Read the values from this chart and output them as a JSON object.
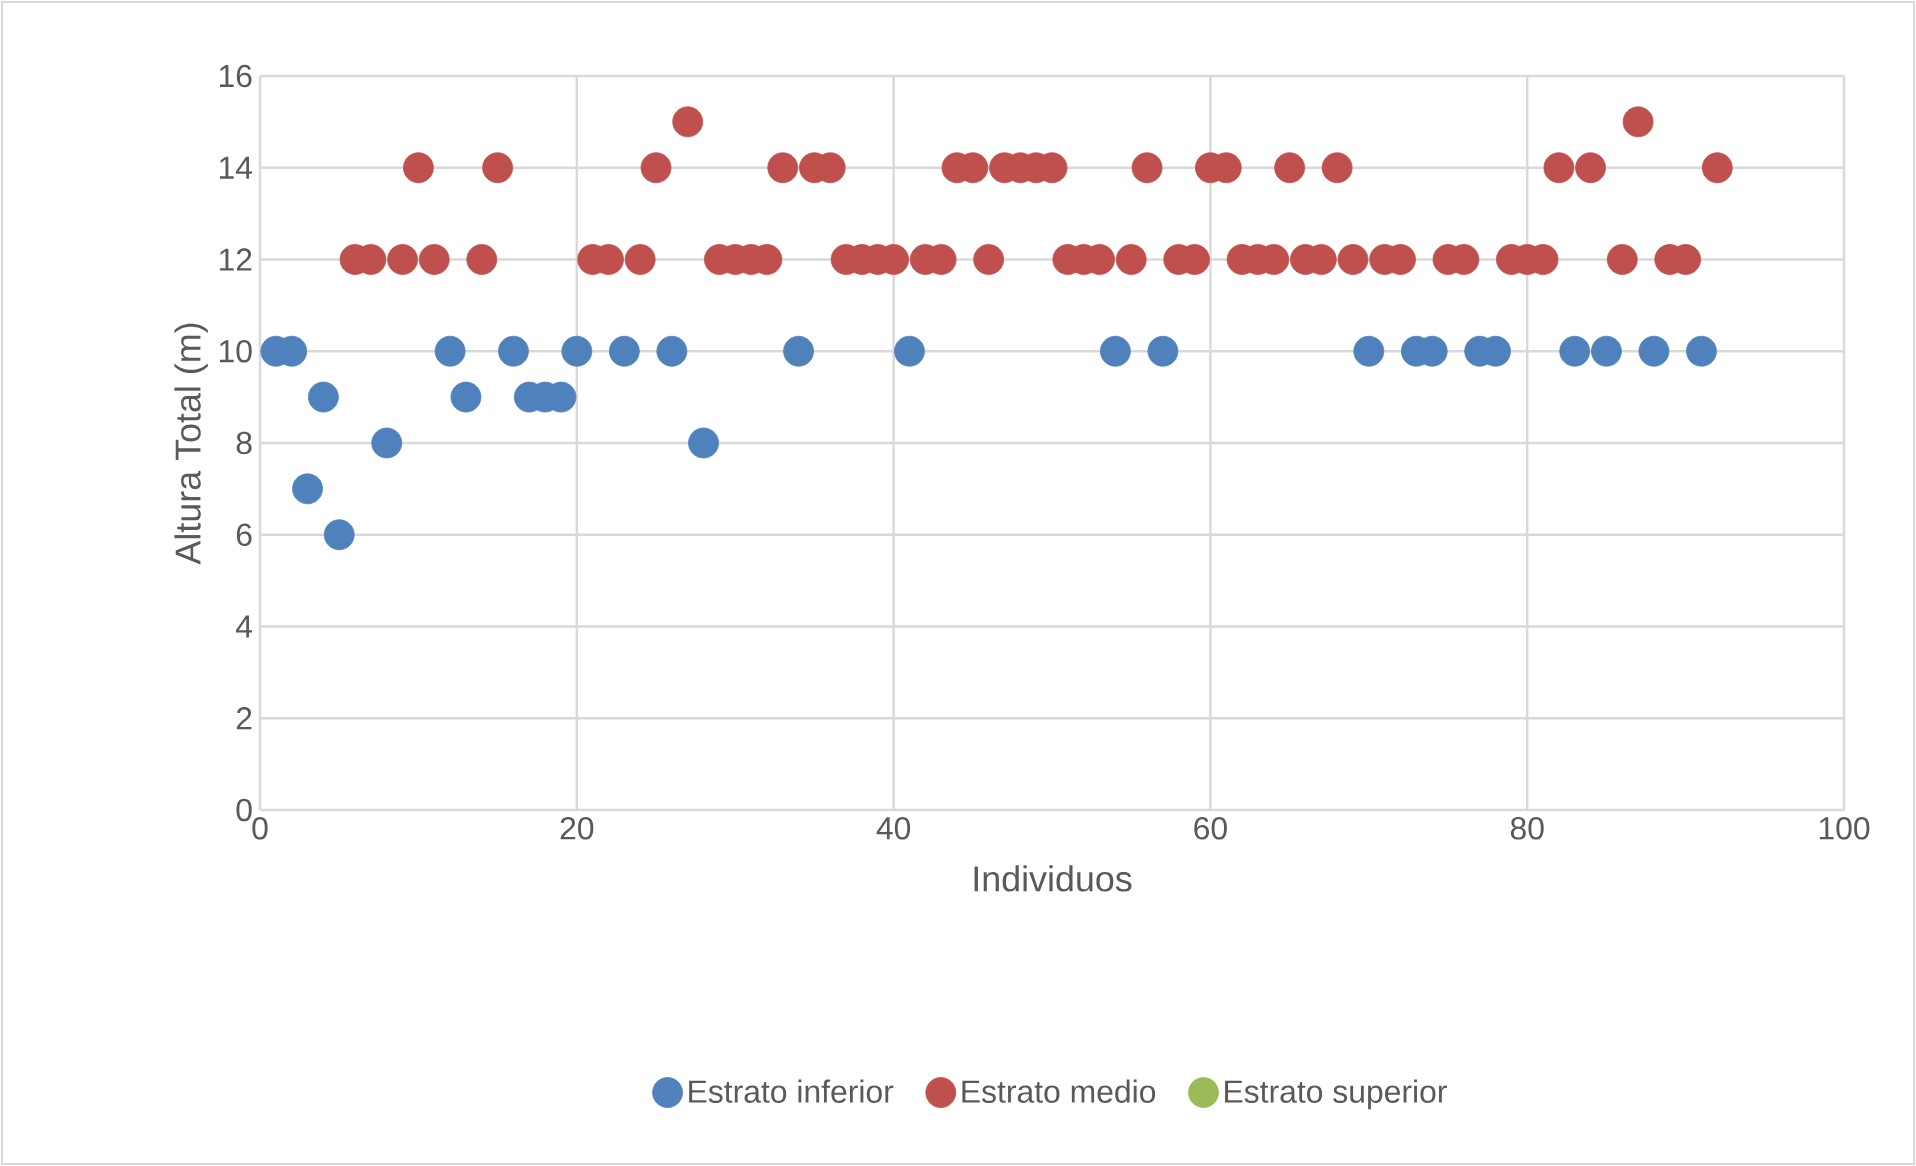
{
  "chart_data": {
    "type": "scatter",
    "xlabel": "Individuos",
    "ylabel": "Altura Total (m)",
    "xlim": [
      0,
      100
    ],
    "xticks": [
      0,
      20,
      40,
      60,
      80,
      100
    ],
    "ylim": [
      0,
      16
    ],
    "yticks": [
      0,
      2,
      4,
      6,
      8,
      10,
      12,
      14,
      16
    ],
    "grid": true,
    "legend": "bottom",
    "marker": "circle",
    "series": [
      {
        "name": "Estrato inferior",
        "color": "#4f81bd",
        "x": [
          1,
          2,
          3,
          4,
          5,
          8,
          12,
          13,
          16,
          17,
          18,
          19,
          20,
          23,
          26,
          28,
          34,
          41,
          54,
          57,
          70,
          73,
          74,
          77,
          78,
          83,
          85,
          88,
          91
        ],
        "values": [
          10,
          10,
          7,
          9,
          6,
          8,
          10,
          9,
          10,
          9,
          9,
          9,
          10,
          10,
          10,
          8,
          10,
          10,
          10,
          10,
          10,
          10,
          10,
          10,
          10,
          10,
          10,
          10,
          10
        ]
      },
      {
        "name": "Estrato medio",
        "color": "#c0504d",
        "x": [
          6,
          7,
          9,
          10,
          11,
          14,
          15,
          21,
          22,
          24,
          25,
          27,
          29,
          30,
          31,
          32,
          33,
          35,
          36,
          37,
          38,
          39,
          40,
          42,
          43,
          44,
          45,
          46,
          47,
          48,
          49,
          50,
          51,
          52,
          53,
          55,
          56,
          58,
          59,
          60,
          61,
          62,
          63,
          64,
          65,
          66,
          67,
          68,
          69,
          71,
          72,
          75,
          76,
          79,
          80,
          81,
          82,
          84,
          86,
          87,
          89,
          90,
          92
        ],
        "values": [
          12,
          12,
          12,
          14,
          12,
          12,
          14,
          12,
          12,
          12,
          14,
          15,
          12,
          12,
          12,
          12,
          14,
          14,
          14,
          12,
          12,
          12,
          12,
          12,
          12,
          14,
          14,
          12,
          14,
          14,
          14,
          14,
          12,
          12,
          12,
          12,
          14,
          12,
          12,
          14,
          14,
          12,
          12,
          12,
          14,
          12,
          12,
          14,
          12,
          12,
          12,
          12,
          12,
          12,
          12,
          12,
          14,
          14,
          12,
          15,
          12,
          12,
          14
        ]
      },
      {
        "name": "Estrato superior",
        "color": "#9bbb59"
      }
    ]
  }
}
